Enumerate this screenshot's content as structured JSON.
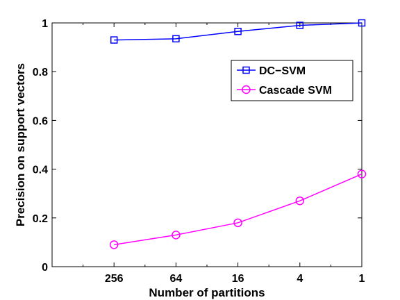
{
  "chart_data": {
    "type": "line",
    "title": "",
    "xlabel": "Number of partitions",
    "ylabel": "Precision on support vectors",
    "categories": [
      "256",
      "64",
      "16",
      "4",
      "1"
    ],
    "x_scale": "log",
    "x_reversed": true,
    "ylim": [
      0,
      1
    ],
    "yticks": [
      "0",
      "0.2",
      "0.4",
      "0.6",
      "0.8",
      "1"
    ],
    "grid": false,
    "legend_position": "top-right",
    "series": [
      {
        "name": "DC−SVM",
        "color": "#0000ff",
        "marker": "square",
        "values": [
          0.93,
          0.935,
          0.965,
          0.99,
          1.0
        ]
      },
      {
        "name": "Cascade SVM",
        "color": "#ff00ff",
        "marker": "circle",
        "values": [
          0.09,
          0.13,
          0.18,
          0.27,
          0.38
        ]
      }
    ]
  }
}
